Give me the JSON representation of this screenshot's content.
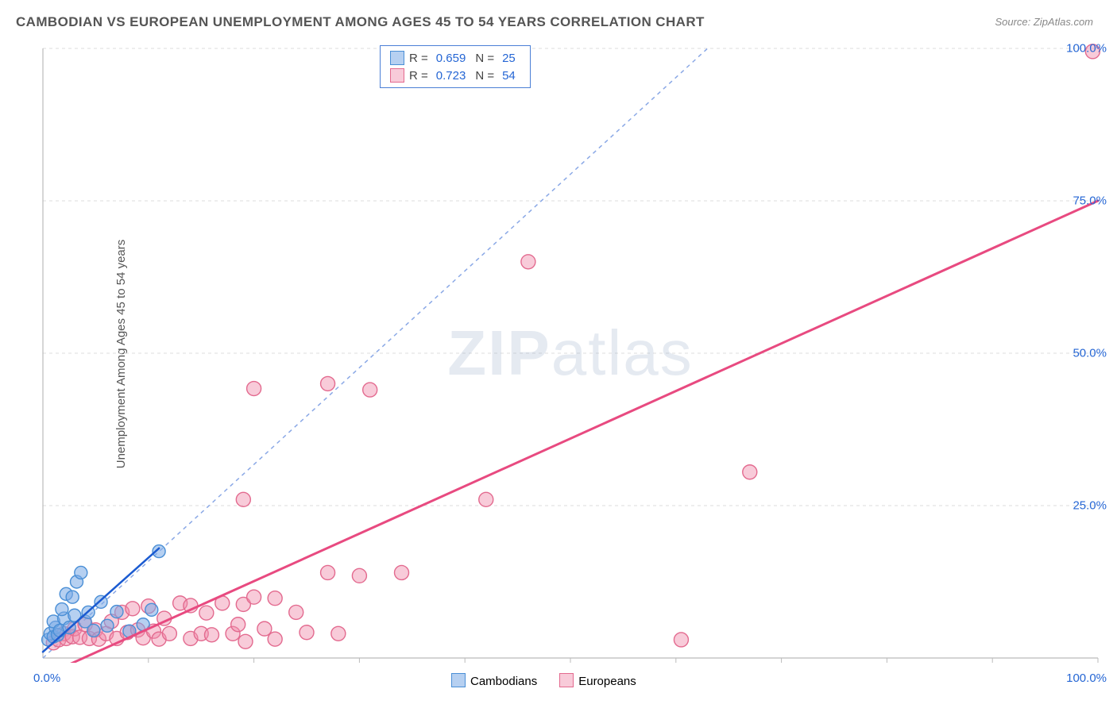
{
  "title": "CAMBODIAN VS EUROPEAN UNEMPLOYMENT AMONG AGES 45 TO 54 YEARS CORRELATION CHART",
  "source": "Source: ZipAtlas.com",
  "watermark_part1": "ZIP",
  "watermark_part2": "atlas",
  "y_axis_label": "Unemployment Among Ages 45 to 54 years",
  "chart": {
    "type": "scatter",
    "xlim": [
      0,
      100
    ],
    "ylim": [
      0,
      100
    ],
    "background_color": "#ffffff",
    "grid_color": "#dddddd",
    "grid_style": "dashed",
    "axis_color": "#bbbbbb",
    "tick_label_color": "#2566d4",
    "tick_fontsize": 15,
    "y_ticks": [
      0,
      25,
      50,
      75,
      100
    ],
    "y_tick_labels": [
      "",
      "25.0%",
      "50.0%",
      "75.0%",
      "100.0%"
    ],
    "x_minor_ticks": [
      10,
      20,
      30,
      40,
      50,
      60,
      70,
      80,
      90
    ],
    "x_label_0": "0.0%",
    "x_label_100": "100.0%",
    "reference_line": {
      "color": "#8aa8e6",
      "dash": "5,5",
      "width": 1.5,
      "from": [
        0,
        0
      ],
      "to": [
        63,
        100
      ]
    },
    "series": [
      {
        "name": "Cambodians",
        "marker_stroke": "#4a8fd6",
        "marker_fill": "rgba(122,170,230,0.55)",
        "marker_radius": 8,
        "line_color": "#1b5bd1",
        "line_width": 2.5,
        "r_value": "0.659",
        "n_value": "25",
        "trend": {
          "from": [
            0,
            1
          ],
          "to": [
            11,
            18
          ]
        },
        "points": [
          [
            0.5,
            3
          ],
          [
            0.7,
            4
          ],
          [
            1,
            3.5
          ],
          [
            1.2,
            5
          ],
          [
            1,
            6
          ],
          [
            1.4,
            3.8
          ],
          [
            1.6,
            4.5
          ],
          [
            2,
            6.5
          ],
          [
            1.8,
            8
          ],
          [
            2.5,
            5
          ],
          [
            2.2,
            10.5
          ],
          [
            3,
            7
          ],
          [
            2.8,
            10
          ],
          [
            3.2,
            12.5
          ],
          [
            3.6,
            14
          ],
          [
            4,
            6
          ],
          [
            4.3,
            7.5
          ],
          [
            4.8,
            4.5
          ],
          [
            5.5,
            9.2
          ],
          [
            6.1,
            5.3
          ],
          [
            7,
            7.6
          ],
          [
            8.2,
            4.4
          ],
          [
            9.5,
            5.5
          ],
          [
            10.3,
            7.9
          ],
          [
            11,
            17.5
          ]
        ]
      },
      {
        "name": "Europeans",
        "marker_stroke": "#e36a8f",
        "marker_fill": "rgba(240,140,170,0.45)",
        "marker_radius": 9,
        "line_color": "#e84a80",
        "line_width": 3,
        "r_value": "0.723",
        "n_value": "54",
        "trend": {
          "from": [
            0,
            -3
          ],
          "to": [
            100,
            75
          ]
        },
        "points": [
          [
            1,
            2.5
          ],
          [
            1.5,
            3
          ],
          [
            2,
            4
          ],
          [
            2.2,
            3.2
          ],
          [
            2.8,
            3.5
          ],
          [
            3,
            4.8
          ],
          [
            3.5,
            3.4
          ],
          [
            4,
            5.5
          ],
          [
            4.4,
            3.2
          ],
          [
            5,
            4.6
          ],
          [
            5.3,
            3.1
          ],
          [
            6,
            4
          ],
          [
            6.5,
            6
          ],
          [
            7,
            3.2
          ],
          [
            7.5,
            7.5
          ],
          [
            8,
            4.2
          ],
          [
            8.5,
            8.1
          ],
          [
            9,
            4.6
          ],
          [
            9.5,
            3.3
          ],
          [
            10,
            8.5
          ],
          [
            10.5,
            4.4
          ],
          [
            11,
            3.1
          ],
          [
            11.5,
            6.5
          ],
          [
            12,
            4
          ],
          [
            13,
            9
          ],
          [
            14,
            3.2
          ],
          [
            14,
            8.6
          ],
          [
            15,
            4
          ],
          [
            15.5,
            7.4
          ],
          [
            16,
            3.8
          ],
          [
            17,
            9
          ],
          [
            18,
            4
          ],
          [
            18.5,
            5.5
          ],
          [
            19.2,
            2.7
          ],
          [
            19,
            8.8
          ],
          [
            20,
            10
          ],
          [
            21,
            4.8
          ],
          [
            22,
            3.1
          ],
          [
            24,
            7.5
          ],
          [
            25,
            4.2
          ],
          [
            27,
            14
          ],
          [
            28,
            4
          ],
          [
            30,
            13.5
          ],
          [
            34,
            14
          ],
          [
            19,
            26
          ],
          [
            20,
            44.2
          ],
          [
            27,
            45
          ],
          [
            31,
            44
          ],
          [
            42,
            26
          ],
          [
            46,
            65
          ],
          [
            60.5,
            3
          ],
          [
            67,
            30.5
          ],
          [
            99.5,
            99.5
          ],
          [
            22,
            9.8
          ]
        ]
      }
    ]
  },
  "legend_top": {
    "r_label": "R =",
    "n_label": "N ="
  },
  "legend_bottom": {
    "items": [
      "Cambodians",
      "Europeans"
    ]
  }
}
